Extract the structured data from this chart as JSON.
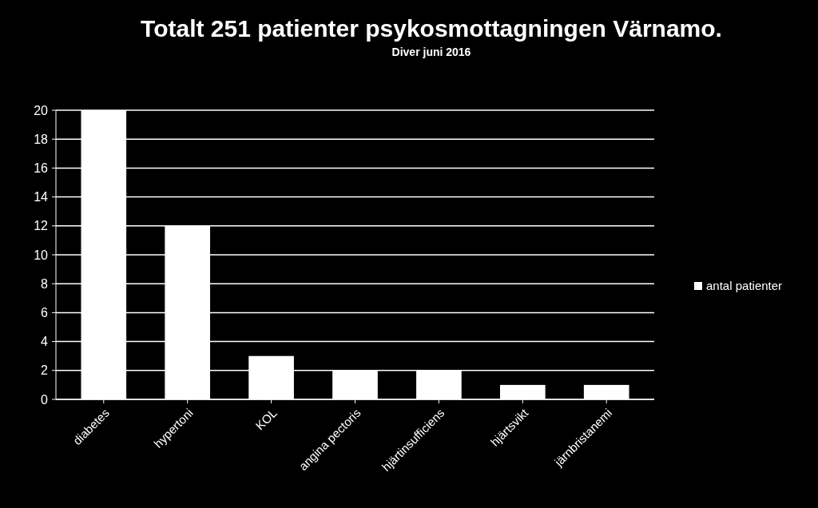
{
  "chart_data": {
    "type": "bar",
    "title": "Totalt 251 patienter psykosmottagningen Värnamo.",
    "subtitle": "Diver juni 2016",
    "categories": [
      "diabetes",
      "hypertoni",
      "KOL",
      "angina pectoris",
      "hjärtinsufficiens",
      "hjärtsvikt",
      "järnbristanemi"
    ],
    "series": [
      {
        "name": "antal patienter",
        "color": "#ffffff",
        "values": [
          20,
          12,
          3,
          2,
          2,
          1,
          1
        ]
      }
    ],
    "ylim": [
      0,
      20
    ],
    "yticks": [
      0,
      2,
      4,
      6,
      8,
      10,
      12,
      14,
      16,
      18,
      20
    ],
    "grid": "y",
    "legend": "right"
  }
}
